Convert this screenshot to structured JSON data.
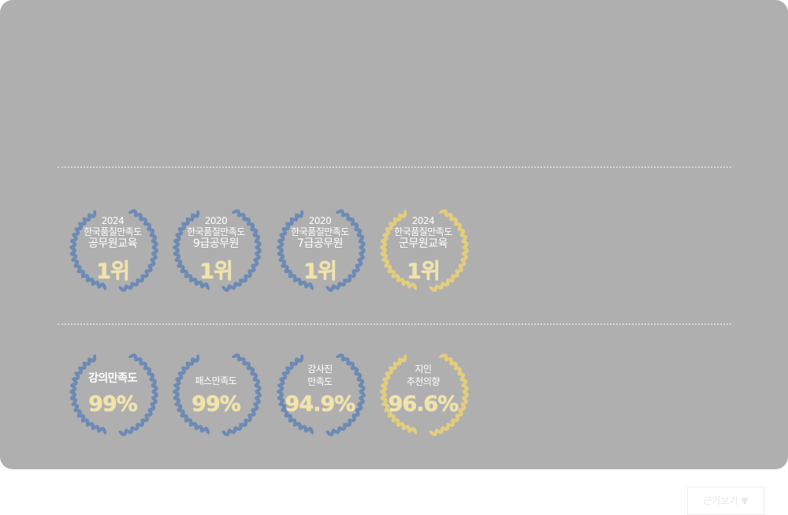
{
  "colors": {
    "panel": "#afafaf",
    "laurel_blue": "#6c8ab5",
    "laurel_gold": "#e3cd7c",
    "value_gold": "#f3e4a4"
  },
  "rankings": [
    {
      "year": "2024",
      "title": "한국품질만족도",
      "category": "공무원교육",
      "rank": "1위",
      "laurel": "blue"
    },
    {
      "year": "2020",
      "title": "한국품질만족도",
      "category": "9급공무원",
      "rank": "1위",
      "laurel": "blue"
    },
    {
      "year": "2020",
      "title": "한국품질만족도",
      "category": "7급공무원",
      "rank": "1위",
      "laurel": "blue"
    },
    {
      "year": "2024",
      "title": "한국품질만족도",
      "category": "군무원교육",
      "rank": "1위",
      "laurel": "gold"
    }
  ],
  "satisfaction": [
    {
      "line1": "강의만족도",
      "line2": "",
      "value": "99%",
      "laurel": "blue"
    },
    {
      "line1": "패스만족도",
      "line2": "",
      "value": "99%",
      "laurel": "blue"
    },
    {
      "line1": "강사진",
      "line2": "만족도",
      "value": "94.9%",
      "laurel": "blue"
    },
    {
      "line1": "지인",
      "line2": "추천의향",
      "value": "96.6%",
      "laurel": "gold"
    }
  ],
  "more_button": {
    "label": "근거보기",
    "icon": "triangle-down-icon"
  }
}
